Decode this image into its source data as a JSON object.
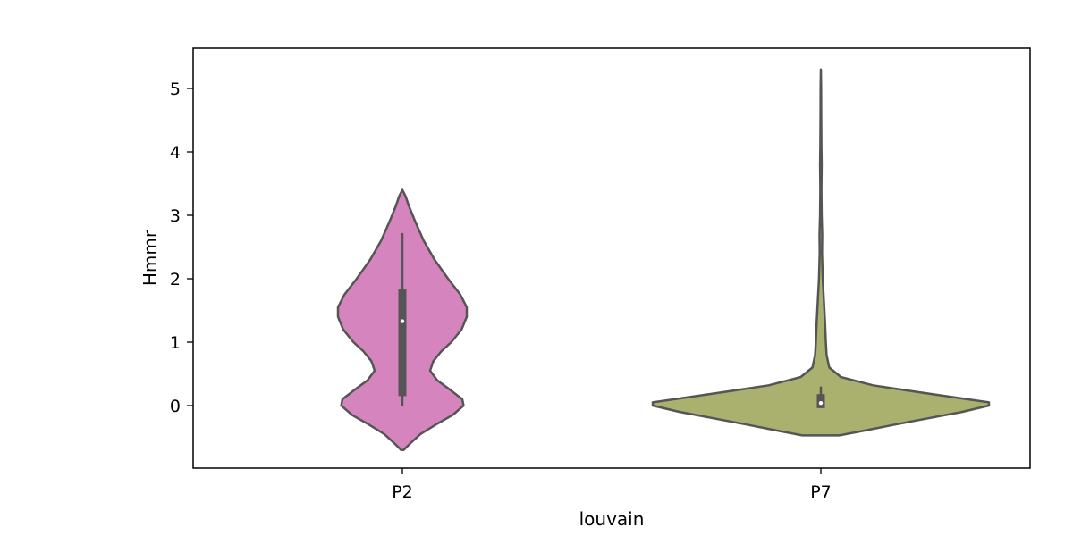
{
  "chart_data": {
    "type": "violin",
    "title": "",
    "xlabel": "louvain",
    "ylabel": "Hmmr",
    "categories": [
      "P2",
      "P7"
    ],
    "ylim": [
      -1.0,
      5.6
    ],
    "yticks": [
      0,
      1,
      2,
      3,
      4,
      5
    ],
    "grid": false,
    "legend": "none",
    "colors": {
      "P2": "#d684bd",
      "P7": "#aab06e",
      "outline": "#555555",
      "median": "#ffffff"
    },
    "violins": [
      {
        "category": "P2",
        "color": "#d684bd",
        "ymin": -0.7,
        "ymax": 3.4,
        "median": 1.33,
        "q1": 0.15,
        "q3": 1.83,
        "whisker_low": 0.0,
        "whisker_high": 2.72,
        "density": [
          [
            -0.7,
            0.02
          ],
          [
            -0.6,
            0.12
          ],
          [
            -0.45,
            0.28
          ],
          [
            -0.3,
            0.52
          ],
          [
            -0.15,
            0.78
          ],
          [
            0.0,
            0.95
          ],
          [
            0.1,
            0.93
          ],
          [
            0.25,
            0.74
          ],
          [
            0.4,
            0.54
          ],
          [
            0.55,
            0.43
          ],
          [
            0.7,
            0.48
          ],
          [
            0.85,
            0.6
          ],
          [
            1.0,
            0.76
          ],
          [
            1.2,
            0.92
          ],
          [
            1.4,
            1.0
          ],
          [
            1.55,
            1.0
          ],
          [
            1.75,
            0.9
          ],
          [
            2.0,
            0.71
          ],
          [
            2.3,
            0.5
          ],
          [
            2.6,
            0.33
          ],
          [
            2.9,
            0.2
          ],
          [
            3.15,
            0.1
          ],
          [
            3.3,
            0.05
          ],
          [
            3.4,
            0.0
          ]
        ]
      },
      {
        "category": "P7",
        "color": "#aab06e",
        "ymin": -0.47,
        "ymax": 5.3,
        "median": 0.04,
        "q1": -0.04,
        "q3": 0.18,
        "whisker_low": -0.04,
        "whisker_high": 0.3,
        "density": [
          [
            -0.47,
            0.11
          ],
          [
            -0.4,
            0.25
          ],
          [
            -0.3,
            0.44
          ],
          [
            -0.2,
            0.64
          ],
          [
            -0.1,
            0.84
          ],
          [
            0.0,
            1.0
          ],
          [
            0.05,
            1.0
          ],
          [
            0.12,
            0.82
          ],
          [
            0.22,
            0.56
          ],
          [
            0.32,
            0.31
          ],
          [
            0.45,
            0.12
          ],
          [
            0.6,
            0.05
          ],
          [
            0.8,
            0.034
          ],
          [
            1.0,
            0.03
          ],
          [
            1.3,
            0.025
          ],
          [
            1.6,
            0.019
          ],
          [
            2.0,
            0.011
          ],
          [
            2.4,
            0.007
          ],
          [
            2.7,
            0.008
          ],
          [
            3.0,
            0.005
          ],
          [
            3.4,
            0.003
          ],
          [
            3.8,
            0.005
          ],
          [
            4.1,
            0.003
          ],
          [
            4.6,
            0.002
          ],
          [
            5.0,
            0.0015
          ],
          [
            5.3,
            0.0
          ]
        ]
      }
    ]
  }
}
